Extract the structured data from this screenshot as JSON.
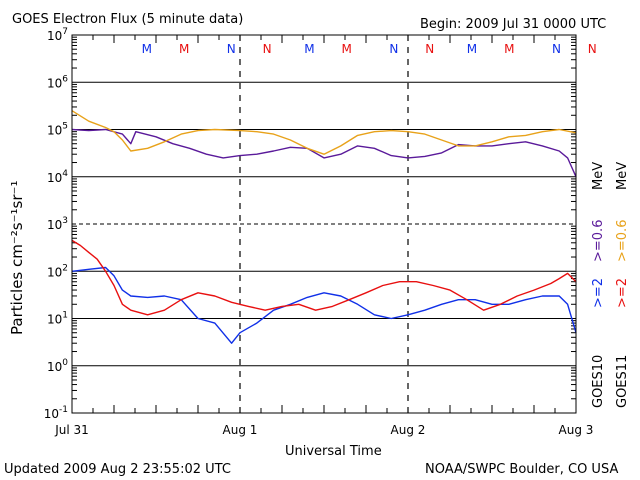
{
  "header": {
    "title": "GOES Electron Flux (5 minute data)",
    "begin": "Begin: 2009 Jul 31 0000 UTC"
  },
  "footer": {
    "updated": "Updated 2009 Aug  2 23:55:02 UTC",
    "credit": "NOAA/SWPC Boulder, CO USA"
  },
  "colors": {
    "goes10_high": "#5a1a9a",
    "goes11_high": "#e8a21a",
    "goes10_low": "#1030e8",
    "goes11_low": "#e81010"
  },
  "chart_data": {
    "type": "line",
    "title": "GOES Electron Flux (5 minute data)",
    "xlabel": "Universal Time",
    "ylabel": "Particles cm⁻²s⁻¹sr⁻¹",
    "yscale": "log",
    "ylim": [
      0.1,
      10000000
    ],
    "xlim": [
      0,
      3
    ],
    "x_tick_labels": [
      "Jul 31",
      "Aug 1",
      "Aug 2",
      "Aug 3"
    ],
    "y_tick_labels": [
      {
        "base": "10",
        "exp": "-1"
      },
      {
        "base": "10",
        "exp": "0"
      },
      {
        "base": "10",
        "exp": "1"
      },
      {
        "base": "10",
        "exp": "2"
      },
      {
        "base": "10",
        "exp": "3"
      },
      {
        "base": "10",
        "exp": "4"
      },
      {
        "base": "10",
        "exp": "5"
      },
      {
        "base": "10",
        "exp": "6"
      },
      {
        "base": "10",
        "exp": "7"
      }
    ],
    "mn_markers": [
      {
        "letter": "M",
        "x": 0.3,
        "color": "#1030e8"
      },
      {
        "letter": "M",
        "x": 0.53,
        "color": "#e81010"
      },
      {
        "letter": "N",
        "x": 0.82,
        "color": "#1030e8"
      },
      {
        "letter": "N",
        "x": 1.04,
        "color": "#e81010"
      },
      {
        "letter": "M",
        "x": 1.3,
        "color": "#1030e8"
      },
      {
        "letter": "M",
        "x": 1.53,
        "color": "#e81010"
      },
      {
        "letter": "N",
        "x": 1.82,
        "color": "#1030e8"
      },
      {
        "letter": "N",
        "x": 2.04,
        "color": "#e81010"
      },
      {
        "letter": "M",
        "x": 2.3,
        "color": "#1030e8"
      },
      {
        "letter": "M",
        "x": 2.53,
        "color": "#e81010"
      },
      {
        "letter": "N",
        "x": 2.82,
        "color": "#1030e8"
      },
      {
        "letter": "N",
        "x": 3.04,
        "color": "#e81010"
      }
    ],
    "legend": {
      "goes10_label": "GOES10",
      "goes11_label": "GOES11",
      "goes10_low": ">=2",
      "goes10_high": ">=0.6",
      "goes11_low": ">=2",
      "goes11_high": ">=0.6",
      "unit": "MeV",
      "placement": "right"
    },
    "series": [
      {
        "name": "GOES10 >=0.6 MeV",
        "color": "#5a1a9a",
        "x": [
          0,
          0.1,
          0.2,
          0.3,
          0.35,
          0.38,
          0.5,
          0.6,
          0.7,
          0.8,
          0.9,
          1.0,
          1.1,
          1.2,
          1.3,
          1.4,
          1.5,
          1.6,
          1.7,
          1.8,
          1.9,
          2.0,
          2.1,
          2.2,
          2.3,
          2.4,
          2.5,
          2.6,
          2.7,
          2.8,
          2.9,
          2.95,
          3.0
        ],
        "values": [
          100000,
          95000,
          100000,
          80000,
          50000,
          90000,
          70000,
          50000,
          40000,
          30000,
          25000,
          28000,
          30000,
          35000,
          42000,
          40000,
          25000,
          30000,
          45000,
          40000,
          28000,
          25000,
          27000,
          32000,
          48000,
          45000,
          45000,
          50000,
          55000,
          45000,
          35000,
          25000,
          10000
        ]
      },
      {
        "name": "GOES11 >=0.6 MeV",
        "color": "#e8a21a",
        "x": [
          0,
          0.1,
          0.2,
          0.25,
          0.3,
          0.35,
          0.45,
          0.55,
          0.65,
          0.75,
          0.85,
          1.0,
          1.1,
          1.2,
          1.3,
          1.4,
          1.5,
          1.6,
          1.7,
          1.8,
          1.9,
          2.0,
          2.1,
          2.2,
          2.3,
          2.4,
          2.5,
          2.6,
          2.7,
          2.8,
          2.9,
          3.0
        ],
        "values": [
          250000,
          150000,
          110000,
          90000,
          60000,
          35000,
          40000,
          55000,
          80000,
          95000,
          100000,
          95000,
          90000,
          80000,
          60000,
          40000,
          30000,
          45000,
          75000,
          90000,
          95000,
          90000,
          80000,
          60000,
          45000,
          45000,
          55000,
          70000,
          75000,
          90000,
          100000,
          85000
        ]
      },
      {
        "name": "GOES10 >=2 MeV",
        "color": "#1030e8",
        "x": [
          0,
          0.1,
          0.2,
          0.25,
          0.3,
          0.35,
          0.45,
          0.55,
          0.65,
          0.75,
          0.85,
          0.95,
          1.0,
          1.1,
          1.2,
          1.3,
          1.4,
          1.5,
          1.6,
          1.7,
          1.8,
          1.9,
          2.0,
          2.1,
          2.2,
          2.3,
          2.4,
          2.5,
          2.6,
          2.7,
          2.8,
          2.9,
          2.95,
          3.0
        ],
        "values": [
          100,
          110,
          120,
          80,
          40,
          30,
          28,
          30,
          25,
          10,
          8,
          3,
          5,
          8,
          15,
          20,
          28,
          35,
          30,
          20,
          12,
          10,
          12,
          15,
          20,
          25,
          25,
          20,
          20,
          25,
          30,
          30,
          20,
          5
        ]
      },
      {
        "name": "GOES11 >=2 MeV",
        "color": "#e81010",
        "x": [
          0,
          0.05,
          0.1,
          0.15,
          0.2,
          0.25,
          0.3,
          0.35,
          0.45,
          0.55,
          0.65,
          0.75,
          0.85,
          0.95,
          1.05,
          1.15,
          1.25,
          1.35,
          1.45,
          1.55,
          1.65,
          1.75,
          1.85,
          1.95,
          2.05,
          2.15,
          2.25,
          2.35,
          2.45,
          2.55,
          2.65,
          2.75,
          2.85,
          2.9,
          2.95,
          3.0
        ],
        "values": [
          450,
          350,
          250,
          180,
          100,
          50,
          20,
          15,
          12,
          15,
          25,
          35,
          30,
          22,
          18,
          15,
          18,
          20,
          15,
          18,
          25,
          35,
          50,
          60,
          60,
          50,
          40,
          25,
          15,
          20,
          30,
          40,
          55,
          70,
          90,
          60
        ]
      }
    ]
  }
}
